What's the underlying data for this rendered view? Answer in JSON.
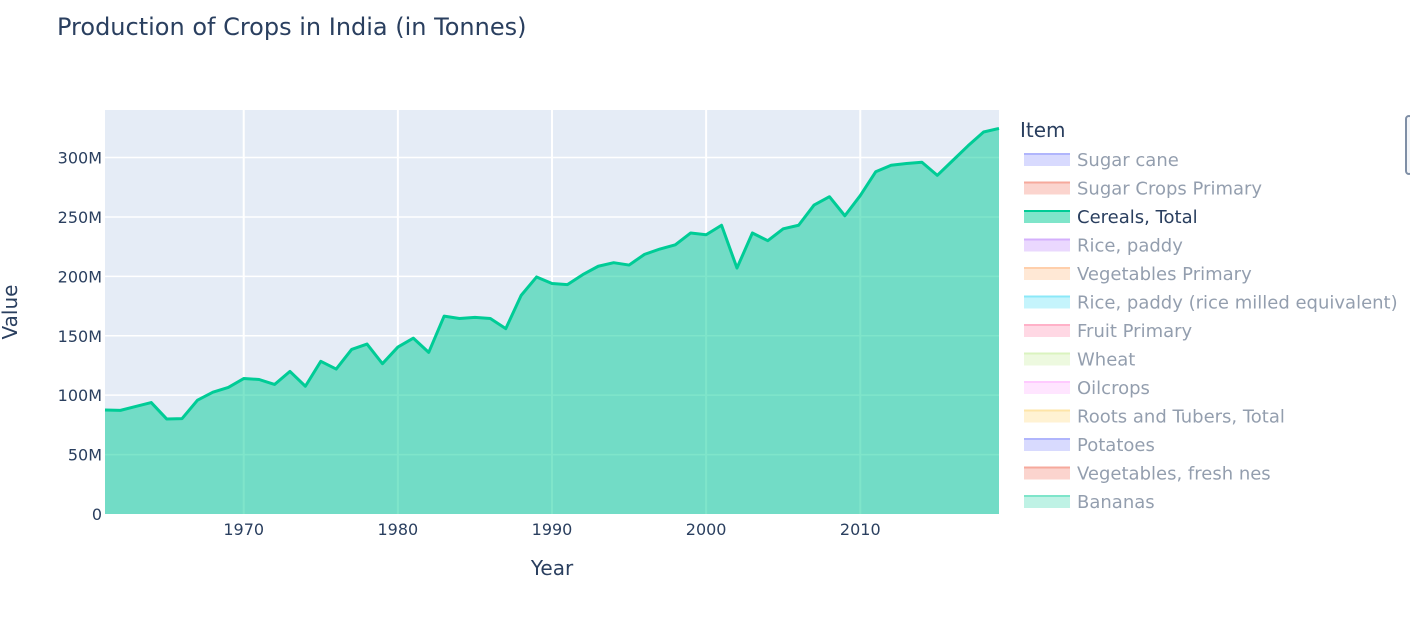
{
  "chart_data": {
    "type": "area",
    "title": "Production of Crops in India (in Tonnes)",
    "xlabel": "Year",
    "ylabel": "Value",
    "xlim": [
      1961,
      2019
    ],
    "ylim": [
      0,
      340000000
    ],
    "x_ticks": [
      1970,
      1980,
      1990,
      2000,
      2010
    ],
    "x_tick_labels": [
      "1970",
      "1980",
      "1990",
      "2000",
      "2010"
    ],
    "y_ticks": [
      0,
      50000000,
      100000000,
      150000000,
      200000000,
      250000000,
      300000000
    ],
    "y_tick_labels": [
      "0",
      "50M",
      "100M",
      "150M",
      "200M",
      "250M",
      "300M"
    ],
    "grid": true,
    "legend": {
      "title": "Item",
      "placement": "right",
      "entries": [
        {
          "name": "Sugar cane",
          "color": "#636efa",
          "active": false
        },
        {
          "name": "Sugar Crops Primary",
          "color": "#ef553b",
          "active": false
        },
        {
          "name": "Cereals, Total",
          "color": "#00cc96",
          "active": true
        },
        {
          "name": "Rice, paddy",
          "color": "#ab63fa",
          "active": false
        },
        {
          "name": "Vegetables Primary",
          "color": "#ffa15a",
          "active": false
        },
        {
          "name": "Rice, paddy (rice milled equivalent)",
          "color": "#19d3f3",
          "active": false
        },
        {
          "name": "Fruit Primary",
          "color": "#ff6692",
          "active": false
        },
        {
          "name": "Wheat",
          "color": "#b6e880",
          "active": false
        },
        {
          "name": "Oilcrops",
          "color": "#ff97ff",
          "active": false
        },
        {
          "name": "Roots and Tubers, Total",
          "color": "#fecb52",
          "active": false
        },
        {
          "name": "Potatoes",
          "color": "#636efa",
          "active": false
        },
        {
          "name": "Vegetables, fresh nes",
          "color": "#ef553b",
          "active": false
        },
        {
          "name": "Bananas",
          "color": "#00cc96",
          "active": false
        }
      ]
    },
    "series": [
      {
        "name": "Cereals, Total",
        "color": "#00cc96",
        "x": [
          1961,
          1962,
          1963,
          1964,
          1965,
          1966,
          1967,
          1968,
          1969,
          1970,
          1971,
          1972,
          1973,
          1974,
          1975,
          1976,
          1977,
          1978,
          1979,
          1980,
          1981,
          1982,
          1983,
          1984,
          1985,
          1986,
          1987,
          1988,
          1989,
          1990,
          1991,
          1992,
          1993,
          1994,
          1995,
          1996,
          1997,
          1998,
          1999,
          2000,
          2001,
          2002,
          2003,
          2004,
          2005,
          2006,
          2007,
          2008,
          2009,
          2010,
          2011,
          2012,
          2013,
          2014,
          2015,
          2016,
          2017,
          2018,
          2019
        ],
        "values": [
          87500000,
          87200000,
          90500000,
          93800000,
          80000000,
          80300000,
          95800000,
          102500000,
          106500000,
          114000000,
          113200000,
          109000000,
          120000000,
          107500000,
          128500000,
          122000000,
          138500000,
          143000000,
          126500000,
          140500000,
          148000000,
          136000000,
          166500000,
          164500000,
          165500000,
          164500000,
          156000000,
          184000000,
          199500000,
          194000000,
          193000000,
          201500000,
          208500000,
          211500000,
          209500000,
          218500000,
          223000000,
          226500000,
          236500000,
          235000000,
          243000000,
          207000000,
          236500000,
          230000000,
          240000000,
          243000000,
          260000000,
          267000000,
          251000000,
          268000000,
          288000000,
          293500000,
          295000000,
          296000000,
          285000000,
          297500000,
          310000000,
          321500000,
          324500000
        ]
      }
    ]
  }
}
